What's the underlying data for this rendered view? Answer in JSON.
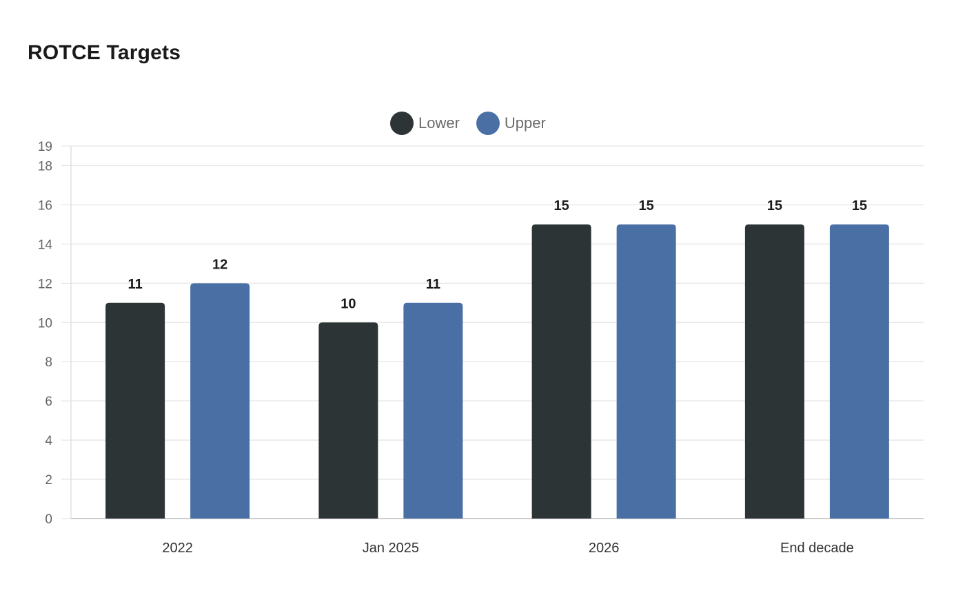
{
  "chart_data": {
    "type": "bar",
    "title": "ROTCE Targets",
    "categories": [
      "2022",
      "Jan 2025",
      "2026",
      "End decade"
    ],
    "series": [
      {
        "name": "Lower",
        "values": [
          11,
          10,
          15,
          15
        ],
        "color": "#2d3436"
      },
      {
        "name": "Upper",
        "values": [
          12,
          11,
          15,
          15
        ],
        "color": "#4a6fa5"
      }
    ],
    "xlabel": "",
    "ylabel": "",
    "ylim": [
      0,
      19
    ],
    "yticks": [
      0,
      2,
      4,
      6,
      8,
      10,
      12,
      14,
      16,
      18,
      19
    ],
    "grid": true,
    "legend": "top-center",
    "data_labels": true
  }
}
